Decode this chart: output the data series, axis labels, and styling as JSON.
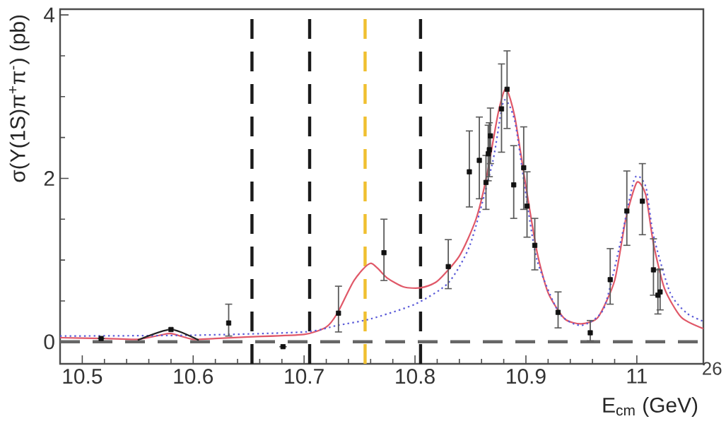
{
  "chart_data": {
    "type": "line",
    "xlabel": "E$_{cm}$ (GeV)",
    "ylabel": "σ(Υ(1S)π$^{+}$π$^{-}$) (pb)",
    "annotations": [
      "26"
    ],
    "xlim": [
      10.48,
      11.06
    ],
    "ylim": [
      -0.27,
      4.07
    ],
    "xticks": [
      10.5,
      10.6,
      10.7,
      10.8,
      10.9,
      {
        "value": 11,
        "label": "11"
      }
    ],
    "yticks": [
      0,
      2,
      4
    ],
    "series": [
      {
        "color": "#e05868",
        "line_style": "solid",
        "x": [
          10.48,
          10.52,
          10.55,
          10.57,
          10.58,
          10.6,
          10.62,
          10.65,
          10.7,
          10.72,
          10.73,
          10.745,
          10.76,
          10.775,
          10.79,
          10.805,
          10.82,
          10.84,
          10.855,
          10.865,
          10.875,
          10.882,
          10.89,
          10.9,
          10.91,
          10.92,
          10.935,
          10.95,
          10.965,
          10.98,
          10.99,
          11.0,
          11.008,
          11.015,
          11.025,
          11.04,
          11.06
        ],
        "values": [
          0.05,
          0.04,
          0.03,
          0.08,
          0.1,
          0.03,
          0.04,
          0.06,
          0.09,
          0.18,
          0.35,
          0.75,
          0.96,
          0.78,
          0.67,
          0.66,
          0.74,
          1.05,
          1.5,
          2.05,
          2.8,
          3.1,
          2.75,
          1.9,
          1.1,
          0.6,
          0.28,
          0.22,
          0.3,
          0.75,
          1.5,
          1.95,
          1.8,
          1.2,
          0.65,
          0.3,
          0.16
        ]
      },
      {
        "color": "#5a5ad8",
        "line_style": "dotted",
        "x": [
          10.48,
          10.6,
          10.7,
          10.73,
          10.76,
          10.8,
          10.83,
          10.85,
          10.87,
          10.88,
          10.89,
          10.9,
          10.91,
          10.93,
          10.95,
          10.97,
          10.985,
          10.998,
          11.008,
          11.015,
          11.03,
          11.045,
          11.06
        ],
        "values": [
          0.07,
          0.08,
          0.12,
          0.2,
          0.28,
          0.46,
          0.72,
          1.2,
          2.2,
          2.95,
          2.7,
          1.8,
          1.0,
          0.35,
          0.2,
          0.4,
          1.2,
          2.0,
          1.9,
          1.3,
          0.6,
          0.35,
          0.25
        ]
      },
      {
        "color": "#222222",
        "line_style": "solid",
        "x": [
          10.55,
          10.58,
          10.605
        ],
        "values": [
          0.02,
          0.15,
          0.02
        ]
      },
      {
        "type": "scatter",
        "color": "#111111",
        "marker": "square",
        "x": [
          10.517,
          10.58,
          10.632,
          10.681,
          10.731,
          10.772,
          10.83,
          10.849,
          10.858,
          10.864,
          10.866,
          10.867,
          10.868,
          10.878,
          10.883,
          10.889,
          10.898,
          10.901,
          10.908,
          10.929,
          10.958,
          10.976,
          10.991,
          11.005,
          11.015,
          11.019,
          11.021
        ],
        "values": [
          0.04,
          0.15,
          0.23,
          -0.06,
          0.35,
          1.09,
          0.92,
          2.08,
          2.22,
          1.95,
          2.3,
          2.35,
          2.52,
          2.85,
          3.09,
          1.92,
          2.13,
          1.66,
          1.18,
          0.36,
          0.11,
          0.76,
          1.6,
          1.72,
          0.88,
          0.57,
          0.61
        ],
        "errors": [
          null,
          null,
          [
            0.07,
            0.46
          ],
          null,
          [
            0.12,
            0.68
          ],
          [
            0.75,
            1.5
          ],
          [
            0.65,
            1.25
          ],
          [
            1.65,
            2.58
          ],
          [
            1.75,
            2.75
          ],
          [
            1.62,
            2.28
          ],
          [
            1.97,
            2.65
          ],
          [
            2.02,
            2.68
          ],
          [
            2.18,
            2.86
          ],
          [
            2.32,
            3.4
          ],
          [
            2.61,
            3.56
          ],
          [
            1.51,
            2.4
          ],
          [
            1.62,
            2.63
          ],
          [
            1.28,
            2.08
          ],
          [
            0.88,
            1.51
          ],
          [
            0.17,
            0.61
          ],
          [
            0.01,
            0.26
          ],
          [
            0.46,
            1.14
          ],
          [
            1.18,
            2.09
          ],
          [
            1.31,
            2.18
          ],
          [
            0.57,
            1.26
          ],
          [
            0.34,
            0.88
          ],
          [
            0.39,
            0.89
          ]
        ]
      }
    ],
    "ref_lines": [
      {
        "axis": "y",
        "value": 0,
        "color": "#666666",
        "line_style": "dashed"
      },
      {
        "axis": "x",
        "value": 10.653,
        "color": "#1a1a1a",
        "line_style": "dashed"
      },
      {
        "axis": "x",
        "value": 10.705,
        "color": "#1a1a1a",
        "line_style": "dashed"
      },
      {
        "axis": "x",
        "value": 10.755,
        "color": "#f0c030",
        "line_style": "dashed"
      },
      {
        "axis": "x",
        "value": 10.805,
        "color": "#1a1a1a",
        "line_style": "dashed"
      }
    ]
  }
}
